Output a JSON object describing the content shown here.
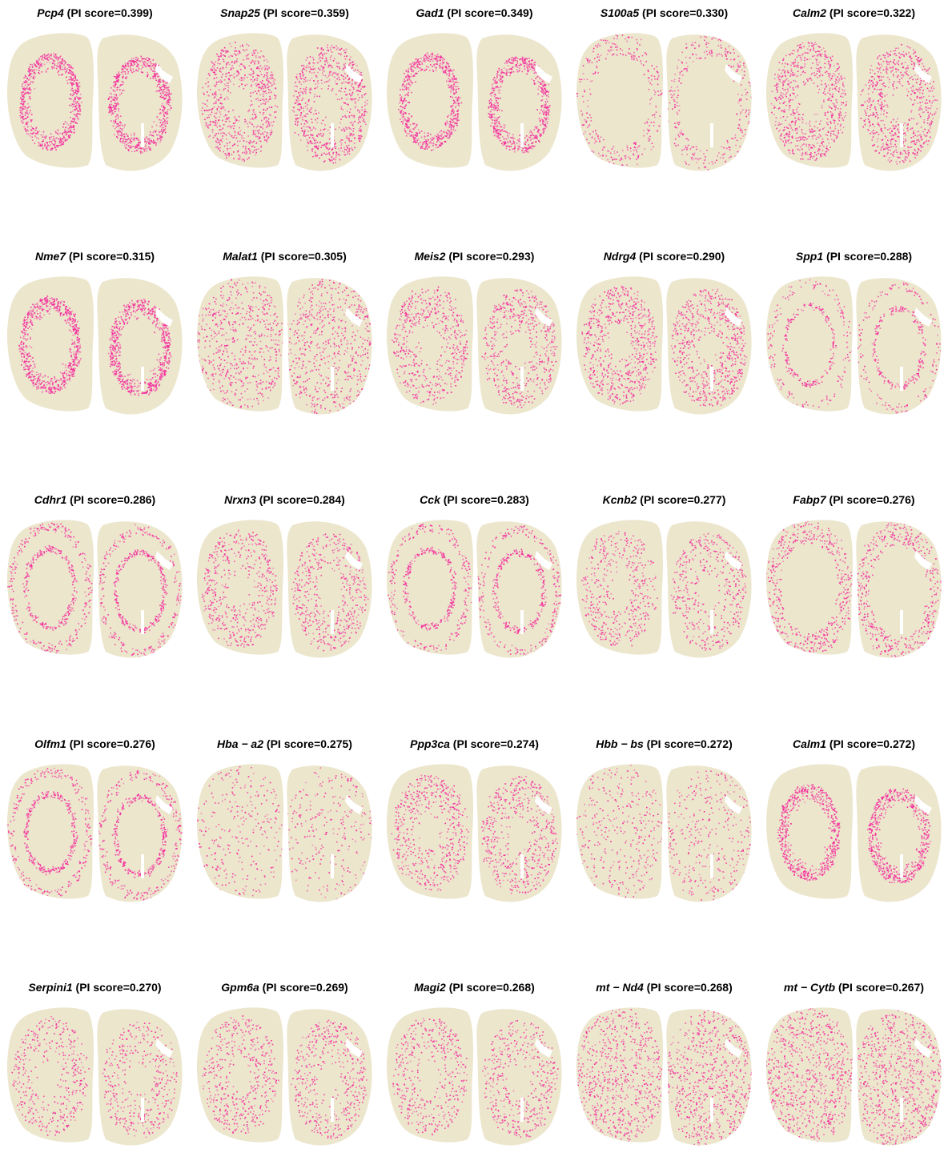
{
  "colors": {
    "background": "#ece6cd",
    "expression": "#f5269b",
    "page": "#ffffff"
  },
  "chart_data": {
    "type": "scatter",
    "description_kind": "spatial gene expression maps (25 panels, 5x5 grid)",
    "score_label": "PI score",
    "panels": [
      {
        "gene": "Pcp4",
        "score": "0.399",
        "pattern": "ring",
        "level": 0.85
      },
      {
        "gene": "Snap25",
        "score": "0.359",
        "pattern": "inner",
        "level": 0.9
      },
      {
        "gene": "Gad1",
        "score": "0.349",
        "pattern": "ring",
        "level": 0.8
      },
      {
        "gene": "S100a5",
        "score": "0.330",
        "pattern": "edge",
        "level": 0.25
      },
      {
        "gene": "Calm2",
        "score": "0.322",
        "pattern": "inner",
        "level": 0.85
      },
      {
        "gene": "Nme7",
        "score": "0.315",
        "pattern": "ring",
        "level": 0.9
      },
      {
        "gene": "Malat1",
        "score": "0.305",
        "pattern": "uniform",
        "level": 0.7
      },
      {
        "gene": "Meis2",
        "score": "0.293",
        "pattern": "inner",
        "level": 0.6
      },
      {
        "gene": "Ndrg4",
        "score": "0.290",
        "pattern": "inner",
        "level": 0.8
      },
      {
        "gene": "Spp1",
        "score": "0.288",
        "pattern": "thin",
        "level": 0.3
      },
      {
        "gene": "Cdhr1",
        "score": "0.286",
        "pattern": "thin",
        "level": 0.55
      },
      {
        "gene": "Nrxn3",
        "score": "0.284",
        "pattern": "inner",
        "level": 0.55
      },
      {
        "gene": "Cck",
        "score": "0.283",
        "pattern": "thin",
        "level": 0.5
      },
      {
        "gene": "Kcnb2",
        "score": "0.277",
        "pattern": "inner",
        "level": 0.45
      },
      {
        "gene": "Fabp7",
        "score": "0.276",
        "pattern": "edge",
        "level": 0.55
      },
      {
        "gene": "Olfm1",
        "score": "0.276",
        "pattern": "thin",
        "level": 0.6
      },
      {
        "gene": "Hba − a2",
        "score": "0.275",
        "pattern": "sparse",
        "level": 0.2
      },
      {
        "gene": "Ppp3ca",
        "score": "0.274",
        "pattern": "inner",
        "level": 0.6
      },
      {
        "gene": "Hbb − bs",
        "score": "0.272",
        "pattern": "sparse",
        "level": 0.3
      },
      {
        "gene": "Calm1",
        "score": "0.272",
        "pattern": "ring",
        "level": 0.75
      },
      {
        "gene": "Serpini1",
        "score": "0.270",
        "pattern": "inner",
        "level": 0.4
      },
      {
        "gene": "Gpm6a",
        "score": "0.269",
        "pattern": "inner",
        "level": 0.5
      },
      {
        "gene": "Magi2",
        "score": "0.268",
        "pattern": "inner",
        "level": 0.45
      },
      {
        "gene": "mt − Nd4",
        "score": "0.268",
        "pattern": "uniform",
        "level": 0.85
      },
      {
        "gene": "mt − Cytb",
        "score": "0.267",
        "pattern": "uniform",
        "level": 0.95
      }
    ]
  }
}
